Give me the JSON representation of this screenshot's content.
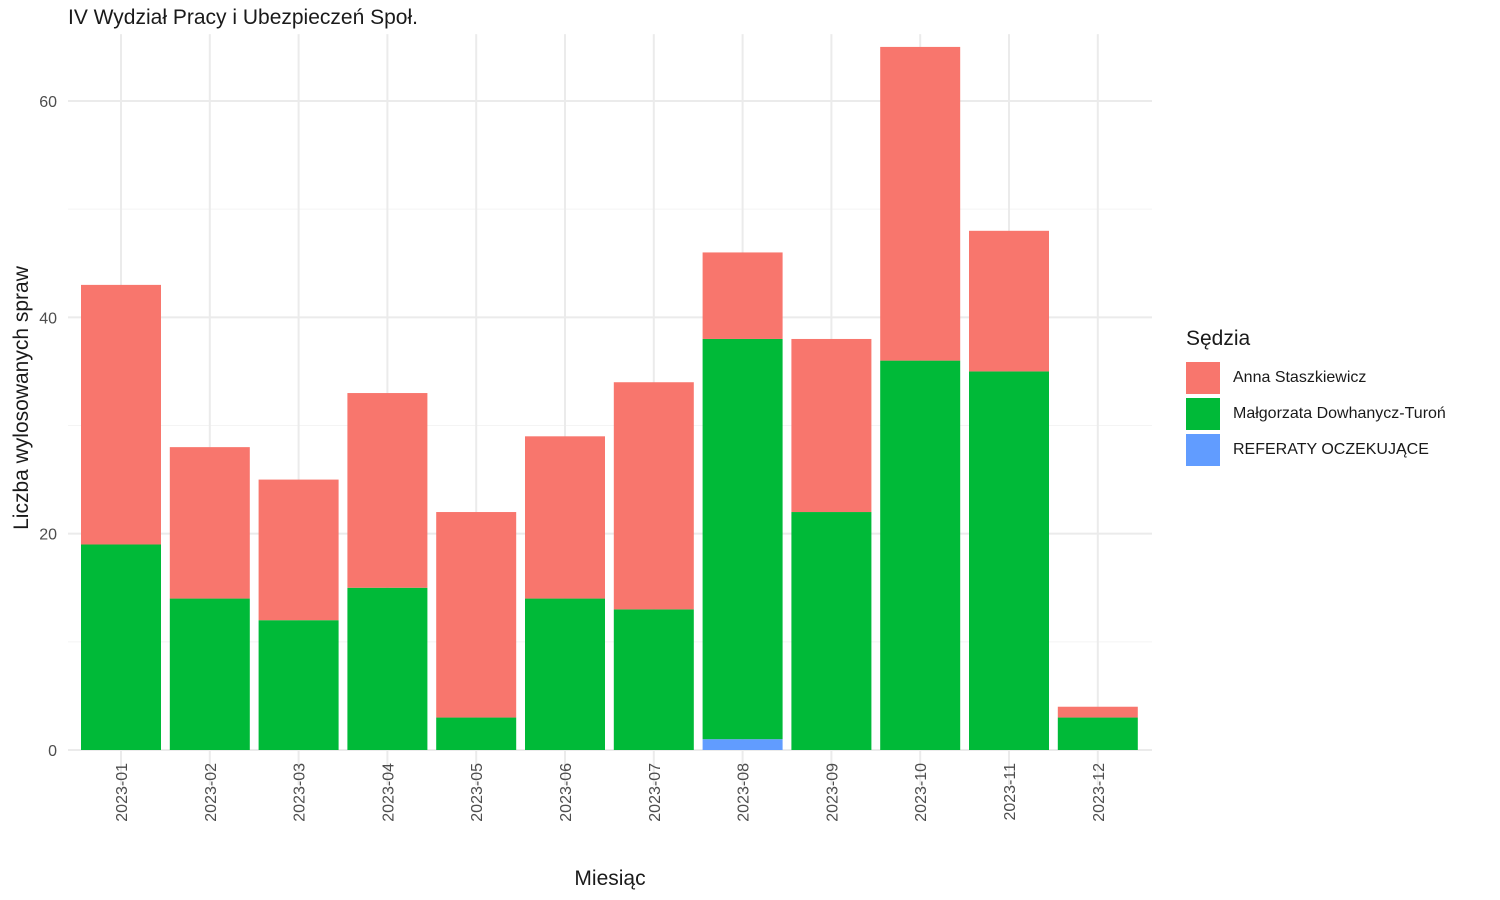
{
  "chart_data": {
    "type": "bar",
    "stacked": true,
    "title": "IV Wydział Pracy i Ubezpieczeń Społ.",
    "xlabel": "Miesiąc",
    "ylabel": "Liczba wylosowanych spraw",
    "categories": [
      "2023-01",
      "2023-02",
      "2023-03",
      "2023-04",
      "2023-05",
      "2023-06",
      "2023-07",
      "2023-08",
      "2023-09",
      "2023-10",
      "2023-11",
      "2023-12"
    ],
    "series": [
      {
        "name": "REFERATY OCZEKUJĄCE",
        "color": "#619CFF",
        "values": [
          0,
          0,
          0,
          0,
          0,
          0,
          0,
          1,
          0,
          0,
          0,
          0
        ]
      },
      {
        "name": "Małgorzata Dowhanycz-Turoń",
        "color": "#00BA38",
        "values": [
          19,
          14,
          12,
          15,
          3,
          14,
          13,
          37,
          22,
          36,
          35,
          3
        ]
      },
      {
        "name": "Anna Staszkiewicz",
        "color": "#F8766D",
        "values": [
          24,
          14,
          13,
          18,
          19,
          15,
          21,
          8,
          16,
          29,
          13,
          1
        ]
      }
    ],
    "ylim": [
      0,
      66
    ],
    "yticks": [
      0,
      20,
      40,
      60
    ],
    "grid": true,
    "legend": {
      "title": "Sędzia",
      "position": "right",
      "items": [
        {
          "label": "Anna Staszkiewicz",
          "color": "#F8766D"
        },
        {
          "label": "Małgorzata Dowhanycz-Turoń",
          "color": "#00BA38"
        },
        {
          "label": "REFERATY OCZEKUJĄCE",
          "color": "#619CFF"
        }
      ]
    }
  }
}
